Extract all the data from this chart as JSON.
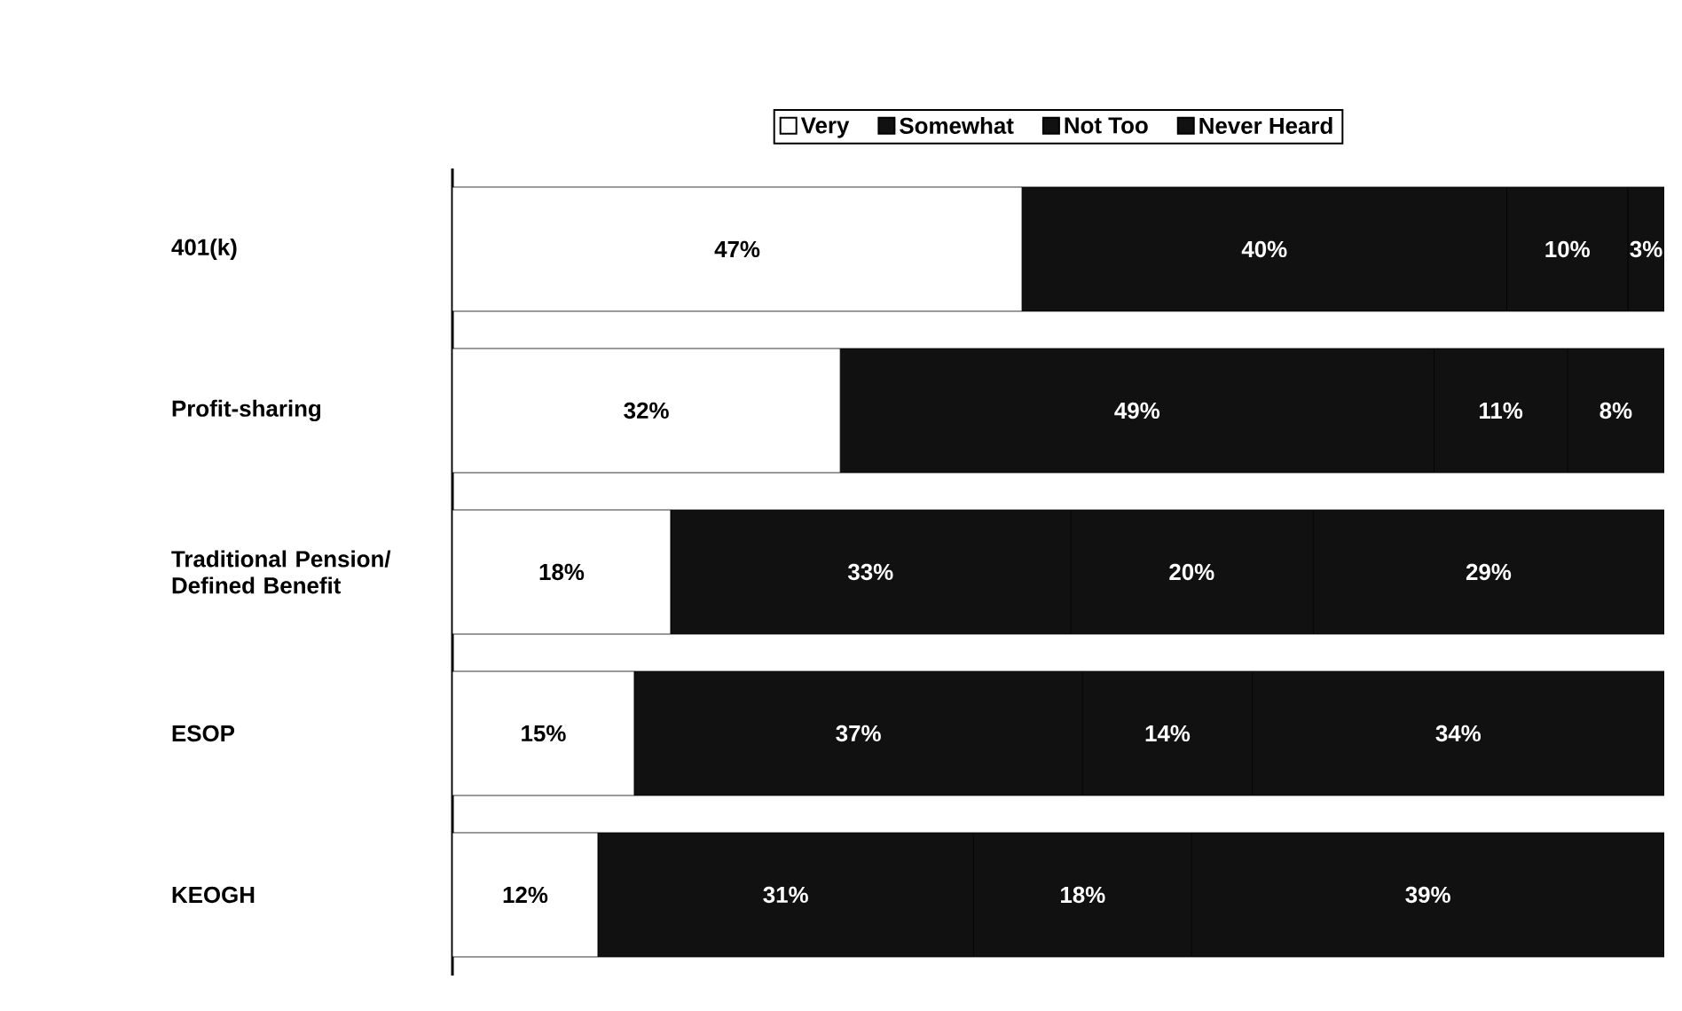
{
  "chart_data": {
    "type": "bar",
    "orientation": "horizontal",
    "stacked": true,
    "legend": "top",
    "tick_labels": "y",
    "xlim": [
      0,
      100
    ],
    "categories": [
      "401(k)",
      "Profit-sharing",
      "Traditional Pension/ Defined Benefit",
      "ESOP",
      "KEOGH"
    ],
    "series": [
      {
        "name": "Very",
        "color": "#ffffff",
        "values": [
          47,
          32,
          18,
          15,
          12
        ],
        "value_labels": [
          "47%",
          "32%",
          "18%",
          "15%",
          "12%"
        ]
      },
      {
        "name": "Somewhat",
        "color": "#111111",
        "values": [
          40,
          49,
          33,
          37,
          31
        ],
        "value_labels": [
          "40%",
          "49%",
          "33%",
          "37%",
          "31%"
        ]
      },
      {
        "name": "Not Too",
        "color": "#111111",
        "values": [
          10,
          11,
          20,
          14,
          18
        ],
        "value_labels": [
          "10%",
          "11%",
          "20%",
          "14%",
          "18%"
        ]
      },
      {
        "name": "Never Heard",
        "color": "#111111",
        "values": [
          3,
          8,
          29,
          34,
          39
        ],
        "value_labels": [
          "3%",
          "8%",
          "29%",
          "34%",
          "39%"
        ]
      }
    ]
  }
}
